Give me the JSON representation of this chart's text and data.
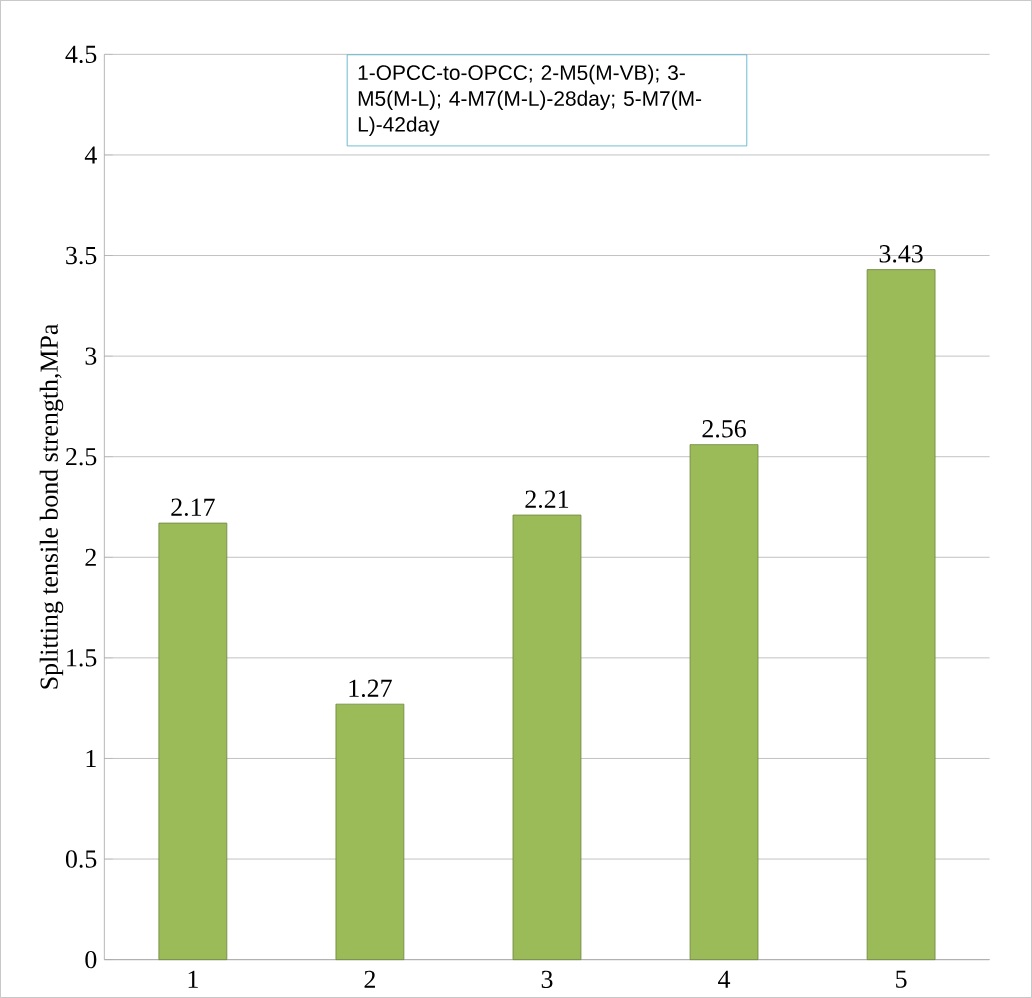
{
  "chart_data": {
    "type": "bar",
    "ylabel": "Splitting tensile bond strength,MPa",
    "categories": [
      "1",
      "2",
      "3",
      "4",
      "5"
    ],
    "values": [
      2.17,
      1.27,
      2.21,
      2.56,
      3.43
    ],
    "color": "#9bbb59",
    "ylim": [
      0,
      4.5
    ],
    "yticks": [
      0,
      0.5,
      1,
      1.5,
      2,
      2.5,
      3,
      3.5,
      4,
      4.5
    ],
    "grid": "y",
    "data_labels": true,
    "annotations": [
      "1-OPCC-to-OPCC; 2-M5(M-VB); 3-M5(M-L); 4-M7(M-L)-28day; 5-M7(M-L)-42day"
    ]
  }
}
